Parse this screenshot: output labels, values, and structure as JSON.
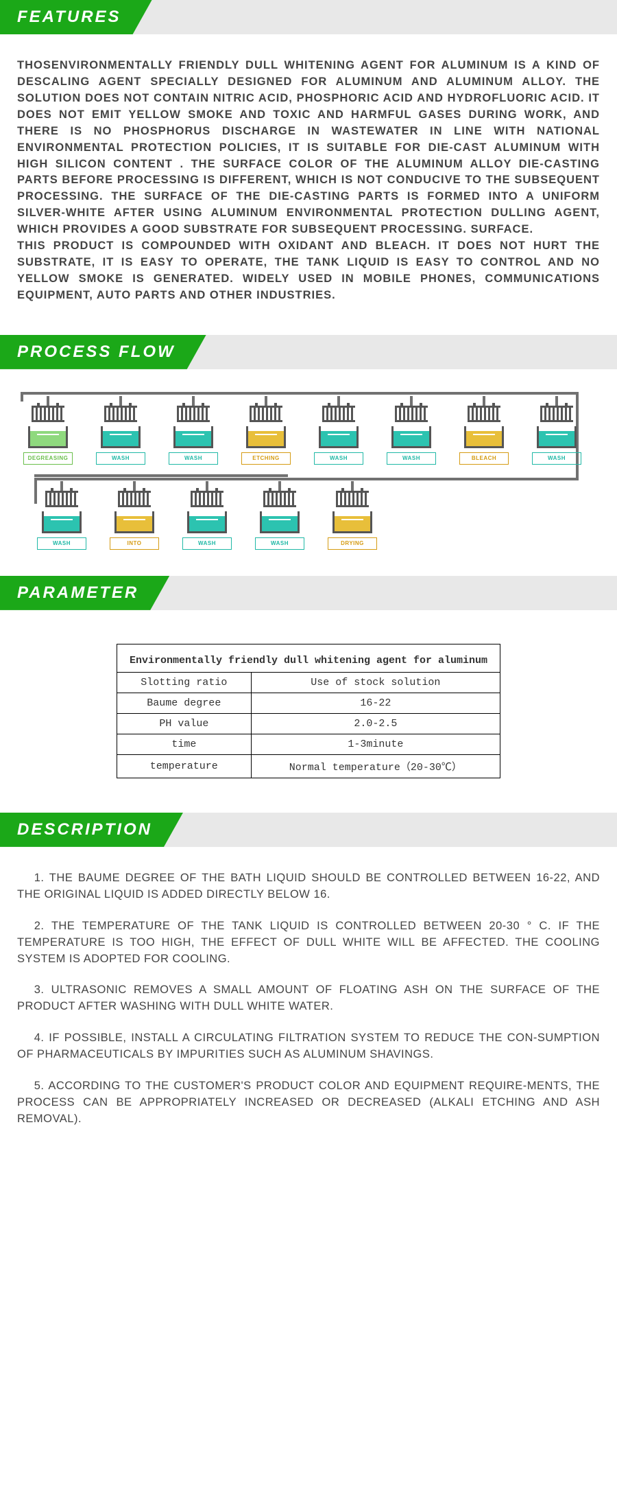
{
  "colors": {
    "header_green": "#1ba818",
    "header_grey": "#e8e8e8",
    "text": "#444444",
    "rail": "#717171",
    "teal": "#2cc3b0",
    "teal_label": "#1fb8a6",
    "green": "#8fd97e",
    "green_label": "#6abf4b",
    "gold": "#e8bf3a",
    "gold_label": "#d59b12",
    "table_border": "#000000"
  },
  "sections": {
    "features": {
      "title": "FEATURES"
    },
    "process_flow": {
      "title": "PROCESS FLOW"
    },
    "parameter": {
      "title": "PARAMETER"
    },
    "description": {
      "title": "DESCRIPTION"
    }
  },
  "features": {
    "p1": "THOSENVIRONMENTALLY FRIENDLY DULL WHITENING AGENT FOR ALUMINUM IS A KIND OF DESCALING AGENT SPECIALLY DESIGNED FOR ALUMINUM AND ALUMINUM ALLOY. THE SOLUTION DOES NOT CONTAIN NITRIC ACID, PHOSPHORIC ACID AND HYDROFLUORIC ACID. IT DOES NOT EMIT YELLOW SMOKE AND TOXIC AND HARMFUL GASES DURING WORK, AND THERE IS NO PHOSPHORUS DISCHARGE IN WASTEWATER IN LINE WITH NATIONAL ENVIRONMENTAL PROTECTION POLICIES, IT IS SUITABLE FOR DIE-CAST ALUMINUM WITH HIGH SILICON CONTENT . THE SURFACE COLOR OF THE ALUMINUM ALLOY DIE-CASTING PARTS BEFORE PROCESSING IS DIFFERENT, WHICH IS NOT CONDUCIVE TO THE SUBSEQUENT PROCESSING. THE SURFACE OF THE DIE-CASTING PARTS IS FORMED INTO A UNIFORM SILVER-WHITE AFTER USING  ALUMINUM ENVIRONMENTAL PROTECTION DULLING AGENT, WHICH PROVIDES A GOOD SUBSTRATE FOR SUBSEQUENT PROCESSING. SURFACE.",
    "p2": "THIS PRODUCT IS COMPOUNDED WITH OXIDANT AND BLEACH. IT DOES NOT HURT THE SUBSTRATE, IT IS EASY TO OPERATE, THE TANK LIQUID IS EASY TO CONTROL AND NO YELLOW SMOKE IS GENERATED. WIDELY USED IN MOBILE PHONES, COMMUNICATIONS EQUIPMENT, AUTO PARTS AND OTHER INDUSTRIES."
  },
  "process": {
    "row1": [
      {
        "label": "DEGREASING",
        "color": "green"
      },
      {
        "label": "WASH",
        "color": "teal"
      },
      {
        "label": "WASH",
        "color": "teal"
      },
      {
        "label": "ETCHING",
        "color": "gold"
      },
      {
        "label": "WASH",
        "color": "teal"
      },
      {
        "label": "WASH",
        "color": "teal"
      },
      {
        "label": "BLEACH",
        "color": "gold"
      },
      {
        "label": "WASH",
        "color": "teal"
      }
    ],
    "row2": [
      {
        "label": "WASH",
        "color": "teal"
      },
      {
        "label": "INTO",
        "color": "gold"
      },
      {
        "label": "WASH",
        "color": "teal"
      },
      {
        "label": "WASH",
        "color": "teal"
      },
      {
        "label": "DRYING",
        "color": "gold"
      }
    ]
  },
  "parameter": {
    "title": "Environmentally friendly dull whitening agent for aluminum",
    "rows": [
      {
        "k": "Slotting ratio",
        "v": "Use of stock solution"
      },
      {
        "k": "Baume degree",
        "v": "16-22"
      },
      {
        "k": "PH value",
        "v": "2.0-2.5"
      },
      {
        "k": "time",
        "v": "1-3minute"
      },
      {
        "k": "temperature",
        "v": "Normal temperature（20-30℃）"
      }
    ]
  },
  "description": {
    "items": [
      "1. THE BAUME DEGREE OF THE BATH LIQUID SHOULD BE CONTROLLED BETWEEN 16-22, AND THE ORIGINAL LIQUID IS ADDED DIRECTLY BELOW 16.",
      "2. THE TEMPERATURE OF THE TANK LIQUID IS CONTROLLED BETWEEN 20-30 ° C. IF THE TEMPERATURE IS TOO HIGH, THE EFFECT OF DULL WHITE WILL BE AFFECTED. THE COOLING SYSTEM IS ADOPTED FOR COOLING.",
      "3. ULTRASONIC REMOVES A SMALL AMOUNT OF FLOATING ASH ON THE SURFACE OF THE PRODUCT AFTER WASHING WITH DULL WHITE WATER.",
      "4. IF POSSIBLE, INSTALL A CIRCULATING FILTRATION SYSTEM TO REDUCE THE CON-SUMPTION OF PHARMACEUTICALS BY IMPURITIES SUCH AS ALUMINUM SHAVINGS.",
      "5. ACCORDING TO THE CUSTOMER'S PRODUCT COLOR AND EQUIPMENT REQUIRE-MENTS, THE PROCESS CAN BE APPROPRIATELY INCREASED OR DECREASED (ALKALI ETCHING AND ASH REMOVAL)."
    ]
  }
}
